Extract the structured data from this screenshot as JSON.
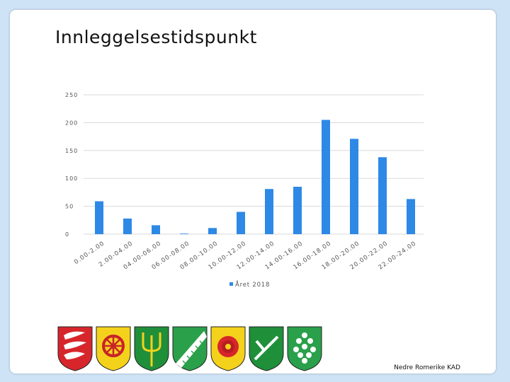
{
  "slide": {
    "title": "Innleggelsestidspunkt",
    "footer": "Nedre Romerike KAD"
  },
  "chart_data": {
    "type": "bar",
    "title": "",
    "xlabel": "",
    "ylabel": "",
    "ylim": [
      0,
      250
    ],
    "yticks": [
      "0",
      "50",
      "100",
      "150",
      "200",
      "250"
    ],
    "grid": true,
    "legend_placement": "bottom",
    "categories": [
      "0.00-2.00",
      "2.00-04.00",
      "04.00-06.00",
      "06.00-08.00",
      "08.00-10.00",
      "10.00-12.00",
      "12.00-14.00",
      "14.00-16.00",
      "16.00-18.00",
      "18.00-20.00",
      "20.00-22.00",
      "22.00-24.00"
    ],
    "series": [
      {
        "name": "Året 2018",
        "color": "#2e89e6",
        "values": [
          59,
          28,
          16,
          1,
          11,
          40,
          81,
          85,
          205,
          171,
          138,
          63
        ]
      }
    ]
  },
  "crests": [
    {
      "name": "crest-white-wings-on-red",
      "icon": "wings-icon"
    },
    {
      "name": "crest-red-wheel-on-yellow",
      "icon": "wheel-icon"
    },
    {
      "name": "crest-yellow-trident-on-green",
      "icon": "trident-icon"
    },
    {
      "name": "crest-white-diagonal-on-green",
      "icon": "stripe-icon"
    },
    {
      "name": "crest-red-rose-on-yellow",
      "icon": "rose-icon"
    },
    {
      "name": "crest-white-scythe-on-green",
      "icon": "scythe-icon"
    },
    {
      "name": "crest-white-flowers-on-green",
      "icon": "flowers-icon"
    }
  ],
  "colors": {
    "bar": "#2e89e6",
    "grid": "#d9d9d9",
    "crest_red": "#d7262b",
    "crest_green": "#1f8f3a",
    "crest_yellow": "#f4d21b"
  }
}
